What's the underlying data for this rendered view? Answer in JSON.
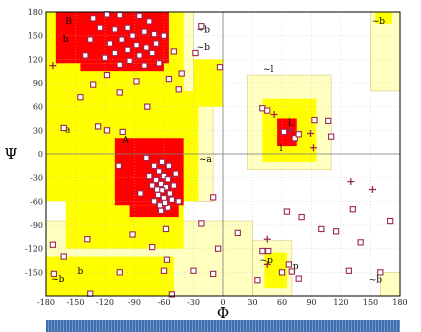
{
  "chart_data": {
    "type": "scatter",
    "title": "",
    "xlabel": "Φ",
    "ylabel": "Ψ",
    "xlim": [
      -180,
      180
    ],
    "ylim": [
      -180,
      180
    ],
    "x_ticks": [
      -180,
      -150,
      -120,
      -90,
      -60,
      -30,
      0,
      30,
      60,
      90,
      120,
      150,
      180
    ],
    "y_ticks": [
      180,
      150,
      120,
      90,
      60,
      30,
      0,
      -30,
      -60,
      -90,
      -120,
      -150
    ],
    "grid": true,
    "colors": {
      "core": "#ff0000",
      "allowed": "#ffff00",
      "generous": "#ffffbf",
      "generous_border": "#d9c97a",
      "residue": "#9b2b55",
      "glycine": "#9b2b55"
    },
    "region_labels": [
      {
        "text": "B",
        "x": -157,
        "y": 165
      },
      {
        "text": "b",
        "x": -160,
        "y": 142
      },
      {
        "text": "~b",
        "x": -20,
        "y": 154
      },
      {
        "text": "~b",
        "x": -20,
        "y": 132
      },
      {
        "text": "a",
        "x": -158,
        "y": 27
      },
      {
        "text": "A",
        "x": -99,
        "y": 14
      },
      {
        "text": "~a",
        "x": -18,
        "y": -10
      },
      {
        "text": "~l",
        "x": 46,
        "y": 104
      },
      {
        "text": "L",
        "x": 69,
        "y": 36
      },
      {
        "text": "l",
        "x": 59,
        "y": 4
      },
      {
        "text": "~p",
        "x": 44,
        "y": -138
      },
      {
        "text": "p",
        "x": 74,
        "y": -146
      },
      {
        "text": "b",
        "x": -145,
        "y": -152
      },
      {
        "text": "~b",
        "x": -168,
        "y": -162
      },
      {
        "text": "~b",
        "x": 158,
        "y": 165
      },
      {
        "text": "~b",
        "x": 155,
        "y": -163
      }
    ],
    "series": [
      {
        "marker": "square",
        "points": [
          [
            -118,
            177
          ],
          [
            -132,
            172
          ],
          [
            -105,
            176
          ],
          [
            -85,
            175
          ],
          [
            -75,
            168
          ],
          [
            -97,
            160
          ],
          [
            -110,
            158
          ],
          [
            -125,
            160
          ],
          [
            -80,
            155
          ],
          [
            -70,
            152
          ],
          [
            -92,
            150
          ],
          [
            -103,
            145
          ],
          [
            -115,
            140
          ],
          [
            -88,
            138
          ],
          [
            -78,
            135
          ],
          [
            -68,
            140
          ],
          [
            -97,
            132
          ],
          [
            -110,
            128
          ],
          [
            -120,
            122
          ],
          [
            -85,
            125
          ],
          [
            -72,
            128
          ],
          [
            -60,
            150
          ],
          [
            -135,
            145
          ],
          [
            -95,
            118
          ],
          [
            -105,
            113
          ],
          [
            -80,
            112
          ],
          [
            -140,
            125
          ],
          [
            -65,
            115
          ],
          [
            -50,
            130
          ],
          [
            -28,
            128
          ],
          [
            -42,
            102
          ],
          [
            -22,
            162
          ],
          [
            -55,
            95
          ],
          [
            -88,
            92
          ],
          [
            -118,
            100
          ],
          [
            -132,
            88
          ],
          [
            -145,
            72
          ],
          [
            -45,
            82
          ],
          [
            -105,
            78
          ],
          [
            -77,
            60
          ],
          [
            -3,
            110
          ],
          [
            -162,
            33
          ],
          [
            -127,
            35
          ],
          [
            -118,
            30
          ],
          [
            -102,
            28
          ],
          [
            -78,
            -5
          ],
          [
            -70,
            -15
          ],
          [
            -65,
            -22
          ],
          [
            -60,
            -28
          ],
          [
            -56,
            -32
          ],
          [
            -68,
            -33
          ],
          [
            -63,
            -38
          ],
          [
            -58,
            -42
          ],
          [
            -72,
            -40
          ],
          [
            -62,
            -46
          ],
          [
            -54,
            -50
          ],
          [
            -66,
            -52
          ],
          [
            -60,
            -56
          ],
          [
            -52,
            -58
          ],
          [
            -70,
            -60
          ],
          [
            -64,
            -65
          ],
          [
            -56,
            -68
          ],
          [
            -50,
            -40
          ],
          [
            -48,
            -25
          ],
          [
            -75,
            -28
          ],
          [
            -62,
            -10
          ],
          [
            -55,
            -15
          ],
          [
            -67,
            -45
          ],
          [
            -59,
            -62
          ],
          [
            -84,
            -50
          ],
          [
            -106,
            -15
          ],
          [
            -45,
            -60
          ],
          [
            -63,
            -72
          ],
          [
            -22,
            -88
          ],
          [
            -58,
            -95
          ],
          [
            -92,
            -102
          ],
          [
            -72,
            -118
          ],
          [
            -138,
            -108
          ],
          [
            -105,
            -150
          ],
          [
            -57,
            -134
          ],
          [
            -60,
            -148
          ],
          [
            -173,
            -115
          ],
          [
            -162,
            -130
          ],
          [
            -172,
            -152
          ],
          [
            -135,
            -177
          ],
          [
            -10,
            -152
          ],
          [
            -30,
            -148
          ],
          [
            -52,
            -178
          ],
          [
            40,
            -123
          ],
          [
            46,
            -123
          ],
          [
            67,
            -140
          ],
          [
            70,
            -149
          ],
          [
            77,
            -158
          ],
          [
            128,
            -148
          ],
          [
            115,
            -98
          ],
          [
            140,
            -112
          ],
          [
            100,
            -95
          ],
          [
            35,
            -160
          ],
          [
            40,
            58
          ],
          [
            45,
            55
          ],
          [
            62,
            28
          ],
          [
            73,
            20
          ],
          [
            77,
            25
          ],
          [
            93,
            43
          ],
          [
            107,
            42
          ],
          [
            65,
            -73
          ],
          [
            80,
            -80
          ],
          [
            132,
            -70
          ],
          [
            -10,
            -55
          ],
          [
            -5,
            -120
          ],
          [
            160,
            -150
          ],
          [
            170,
            -85
          ],
          [
            15,
            -100
          ],
          [
            110,
            22
          ],
          [
            60,
            -150
          ]
        ]
      },
      {
        "marker": "plus",
        "points": [
          [
            -173,
            112
          ],
          [
            52,
            50
          ],
          [
            68,
            30
          ],
          [
            89,
            26
          ],
          [
            92,
            8
          ],
          [
            130,
            -35
          ],
          [
            152,
            -45
          ],
          [
            45,
            -108
          ],
          [
            45,
            -140
          ]
        ]
      }
    ]
  }
}
